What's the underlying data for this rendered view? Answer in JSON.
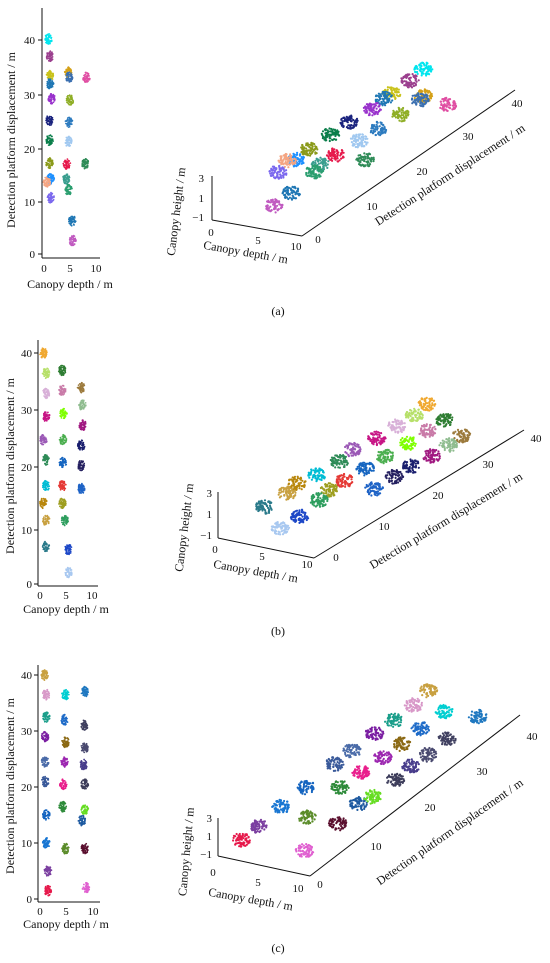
{
  "panels": [
    {
      "caption": "(a)",
      "top_view": {
        "xlabel": "Canopy depth / m",
        "ylabel": "Detection platform displacement / m",
        "x_ticks": [
          "0",
          "5",
          "10"
        ],
        "y_ticks": [
          "0",
          "10",
          "20",
          "30",
          "40"
        ]
      },
      "view3d": {
        "depth_label": "Canopy depth / m",
        "height_label": "Canopy height / m",
        "disp_label": "Detection platform displacement / m",
        "depth_ticks": [
          "0",
          "5",
          "10"
        ],
        "height_ticks": [
          "3",
          "1",
          "−1"
        ],
        "disp_ticks": [
          "0",
          "10",
          "20",
          "30",
          "40"
        ]
      }
    },
    {
      "caption": "(b)",
      "top_view": {
        "xlabel": "Canopy depth / m",
        "ylabel": "Detection platform displacement / m",
        "x_ticks": [
          "0",
          "5",
          "10"
        ],
        "y_ticks": [
          "0",
          "10",
          "20",
          "30",
          "40"
        ]
      },
      "view3d": {
        "depth_label": "Canopy depth / m",
        "height_label": "Canopy height / m",
        "disp_label": "Detection platform displacement / m",
        "depth_ticks": [
          "0",
          "5",
          "10"
        ],
        "height_ticks": [
          "3",
          "1",
          "−1"
        ],
        "disp_ticks": [
          "0",
          "10",
          "20",
          "30",
          "40"
        ]
      }
    },
    {
      "caption": "(c)",
      "top_view": {
        "xlabel": "Canopy depth / m",
        "ylabel": "Detection platform displacement / m",
        "x_ticks": [
          "0",
          "5",
          "10"
        ],
        "y_ticks": [
          "0",
          "10",
          "20",
          "30",
          "40"
        ]
      },
      "view3d": {
        "depth_label": "Canopy depth / m",
        "height_label": "Canopy height / m",
        "disp_label": "Detection platform displacement / m",
        "depth_ticks": [
          "0",
          "5",
          "10"
        ],
        "height_ticks": [
          "3",
          "1",
          "−1"
        ],
        "disp_ticks": [
          "0",
          "10",
          "20",
          "30",
          "40"
        ]
      }
    }
  ],
  "chart_data": [
    {
      "type": "scatter",
      "panel": "(a)",
      "xlabel": "Canopy depth / m",
      "ylabel": "Detection platform displacement / m",
      "xlim": [
        0,
        10
      ],
      "ylim": [
        0,
        42
      ],
      "series": [
        {
          "x": 1.2,
          "y": 40.2,
          "color": "#00e5ee"
        },
        {
          "x": 1.5,
          "y": 37.0,
          "color": "#9b3f8e"
        },
        {
          "x": 1.5,
          "y": 33.3,
          "color": "#c9c21a"
        },
        {
          "x": 4.8,
          "y": 34.0,
          "color": "#d4a017"
        },
        {
          "x": 5.0,
          "y": 33.0,
          "color": "#3a6fb0"
        },
        {
          "x": 8.2,
          "y": 33.0,
          "color": "#e04fa3"
        },
        {
          "x": 1.5,
          "y": 31.8,
          "color": "#1f77b4"
        },
        {
          "x": 1.8,
          "y": 29.0,
          "color": "#9932cc"
        },
        {
          "x": 5.2,
          "y": 28.8,
          "color": "#8fae26"
        },
        {
          "x": 1.4,
          "y": 25.0,
          "color": "#1a237e"
        },
        {
          "x": 5.0,
          "y": 24.6,
          "color": "#2d7bbf"
        },
        {
          "x": 1.4,
          "y": 21.3,
          "color": "#0a7e4a"
        },
        {
          "x": 4.9,
          "y": 21.0,
          "color": "#a0c8f0"
        },
        {
          "x": 1.4,
          "y": 17.0,
          "color": "#8a9a1a"
        },
        {
          "x": 4.6,
          "y": 16.8,
          "color": "#e6194b"
        },
        {
          "x": 8.0,
          "y": 16.9,
          "color": "#2e8b57"
        },
        {
          "x": 1.6,
          "y": 14.1,
          "color": "#1e90ff"
        },
        {
          "x": 0.9,
          "y": 13.5,
          "color": "#f4a582"
        },
        {
          "x": 4.5,
          "y": 14.0,
          "color": "#3a9e8f"
        },
        {
          "x": 4.9,
          "y": 12.0,
          "color": "#2a9e6f"
        },
        {
          "x": 1.6,
          "y": 10.5,
          "color": "#7b68ee"
        },
        {
          "x": 5.6,
          "y": 6.2,
          "color": "#1f77b4"
        },
        {
          "x": 5.7,
          "y": 2.5,
          "color": "#c05ac0"
        }
      ]
    },
    {
      "type": "scatter",
      "panel": "(b)",
      "xlabel": "Canopy depth / m",
      "ylabel": "Detection platform displacement / m",
      "xlim": [
        0,
        10
      ],
      "ylim": [
        0,
        42
      ],
      "series": [
        {
          "x": 1.0,
          "y": 40.0,
          "color": "#f0a830"
        },
        {
          "x": 1.5,
          "y": 36.5,
          "color": "#b7e06a"
        },
        {
          "x": 4.5,
          "y": 37.0,
          "color": "#2e7d32"
        },
        {
          "x": 8.0,
          "y": 34.0,
          "color": "#9c7a3c"
        },
        {
          "x": 1.5,
          "y": 33.0,
          "color": "#d8b0d8"
        },
        {
          "x": 4.5,
          "y": 33.5,
          "color": "#c97ba8"
        },
        {
          "x": 8.2,
          "y": 31.0,
          "color": "#8fbc8f"
        },
        {
          "x": 1.5,
          "y": 29.0,
          "color": "#c71585"
        },
        {
          "x": 4.7,
          "y": 29.5,
          "color": "#7fff00"
        },
        {
          "x": 8.3,
          "y": 27.5,
          "color": "#a01880"
        },
        {
          "x": 1.0,
          "y": 25.0,
          "color": "#9b59b6"
        },
        {
          "x": 4.6,
          "y": 25.0,
          "color": "#4caf50"
        },
        {
          "x": 8.0,
          "y": 24.0,
          "color": "#1a1f6e"
        },
        {
          "x": 1.5,
          "y": 21.5,
          "color": "#2e8b57"
        },
        {
          "x": 4.6,
          "y": 21.0,
          "color": "#1565c0"
        },
        {
          "x": 8.0,
          "y": 20.5,
          "color": "#252060"
        },
        {
          "x": 1.5,
          "y": 17.0,
          "color": "#00bcd4"
        },
        {
          "x": 4.5,
          "y": 17.0,
          "color": "#e53935"
        },
        {
          "x": 8.0,
          "y": 16.5,
          "color": "#1e63c6"
        },
        {
          "x": 1.0,
          "y": 14.0,
          "color": "#b8860b"
        },
        {
          "x": 4.5,
          "y": 14.0,
          "color": "#9e9e20"
        },
        {
          "x": 1.5,
          "y": 11.0,
          "color": "#c8a040"
        },
        {
          "x": 5.0,
          "y": 11.0,
          "color": "#2e9e5e"
        },
        {
          "x": 1.5,
          "y": 6.5,
          "color": "#2a7a8a"
        },
        {
          "x": 5.6,
          "y": 6.0,
          "color": "#1c47c7"
        },
        {
          "x": 5.7,
          "y": 2.0,
          "color": "#a8c8f0"
        }
      ]
    },
    {
      "type": "scatter",
      "panel": "(c)",
      "xlabel": "Canopy depth / m",
      "ylabel": "Detection platform displacement / m",
      "xlim": [
        0,
        10
      ],
      "ylim": [
        0,
        42
      ],
      "series": [
        {
          "x": 1.2,
          "y": 40.0,
          "color": "#c8a040"
        },
        {
          "x": 1.5,
          "y": 36.5,
          "color": "#d898c8"
        },
        {
          "x": 5.0,
          "y": 36.5,
          "color": "#00ced1"
        },
        {
          "x": 8.5,
          "y": 37.0,
          "color": "#1f78c0"
        },
        {
          "x": 1.5,
          "y": 32.5,
          "color": "#1a9e8a"
        },
        {
          "x": 4.8,
          "y": 32.0,
          "color": "#1e6bc8"
        },
        {
          "x": 8.4,
          "y": 31.0,
          "color": "#404060"
        },
        {
          "x": 1.3,
          "y": 29.0,
          "color": "#7b1fa2"
        },
        {
          "x": 5.0,
          "y": 28.0,
          "color": "#8b6914"
        },
        {
          "x": 8.5,
          "y": 27.0,
          "color": "#4a4a70"
        },
        {
          "x": 1.3,
          "y": 24.5,
          "color": "#4a6ba8"
        },
        {
          "x": 4.8,
          "y": 24.5,
          "color": "#9c27b0"
        },
        {
          "x": 8.3,
          "y": 24.0,
          "color": "#483d8b"
        },
        {
          "x": 1.3,
          "y": 21.0,
          "color": "#3a5a9a"
        },
        {
          "x": 4.6,
          "y": 20.5,
          "color": "#e91e8c"
        },
        {
          "x": 8.5,
          "y": 20.5,
          "color": "#3c3c5a"
        },
        {
          "x": 1.5,
          "y": 15.0,
          "color": "#1565c0"
        },
        {
          "x": 4.5,
          "y": 16.5,
          "color": "#2e8b3a"
        },
        {
          "x": 8.0,
          "y": 14.0,
          "color": "#1e5aa0"
        },
        {
          "x": 1.5,
          "y": 10.0,
          "color": "#1976d2"
        },
        {
          "x": 5.0,
          "y": 9.0,
          "color": "#5b8c2a"
        },
        {
          "x": 8.5,
          "y": 9.0,
          "color": "#5a0f2e"
        },
        {
          "x": 8.5,
          "y": 16.0,
          "color": "#66dd22"
        },
        {
          "x": 1.8,
          "y": 5.0,
          "color": "#7b3fa0"
        },
        {
          "x": 1.8,
          "y": 1.5,
          "color": "#e6194b"
        },
        {
          "x": 8.7,
          "y": 2.0,
          "color": "#e060d0"
        }
      ]
    }
  ]
}
